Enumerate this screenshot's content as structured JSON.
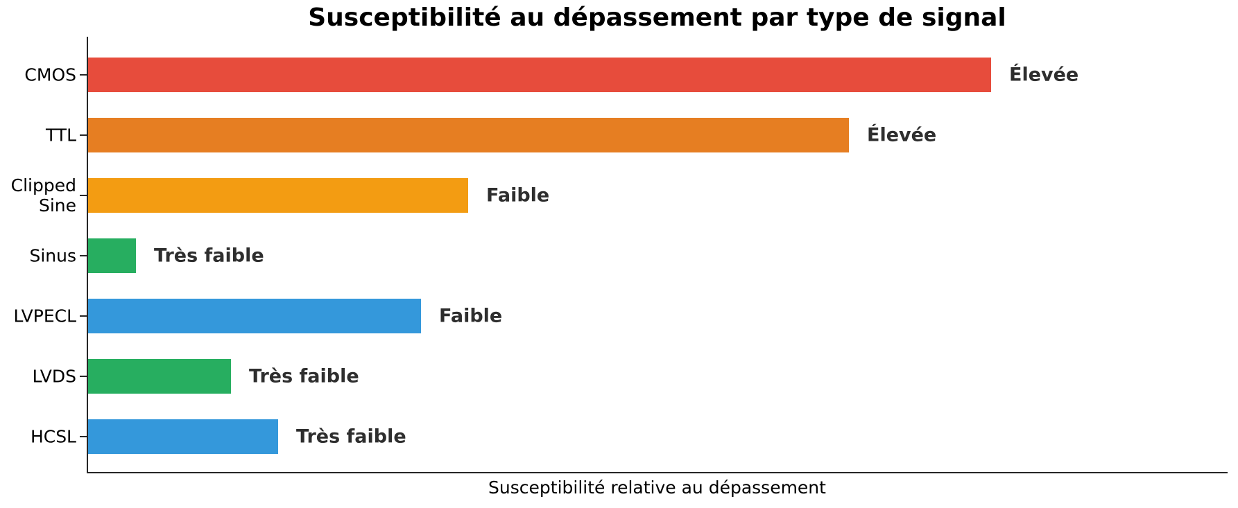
{
  "figure": {
    "background": "#ffffff",
    "spine_color": "#262626",
    "title_color": "#000000",
    "tick_label_color": "#000000",
    "annotation_color": "#2e2e2e"
  },
  "chart_data": {
    "type": "bar",
    "orientation": "horizontal",
    "title": "Susceptibilité au dépassement par type de signal",
    "xlabel": "Susceptibilité relative au dépassement",
    "ylabel": "",
    "xlim": [
      0,
      120
    ],
    "grid": false,
    "legend": false,
    "categories": [
      "CMOS",
      "TTL",
      "Clipped\nSine",
      "Sinus",
      "LVPECL",
      "LVDS",
      "HCSL"
    ],
    "values": [
      95,
      80,
      40,
      5,
      35,
      15,
      20
    ],
    "bar_labels": [
      "Élevée",
      "Élevée",
      "Faible",
      "Très faible",
      "Faible",
      "Très faible",
      "Très faible"
    ],
    "bar_colors": [
      "#e74c3c",
      "#e67e22",
      "#f39c12",
      "#27ae60",
      "#3498db",
      "#27ae60",
      "#3498db"
    ]
  }
}
